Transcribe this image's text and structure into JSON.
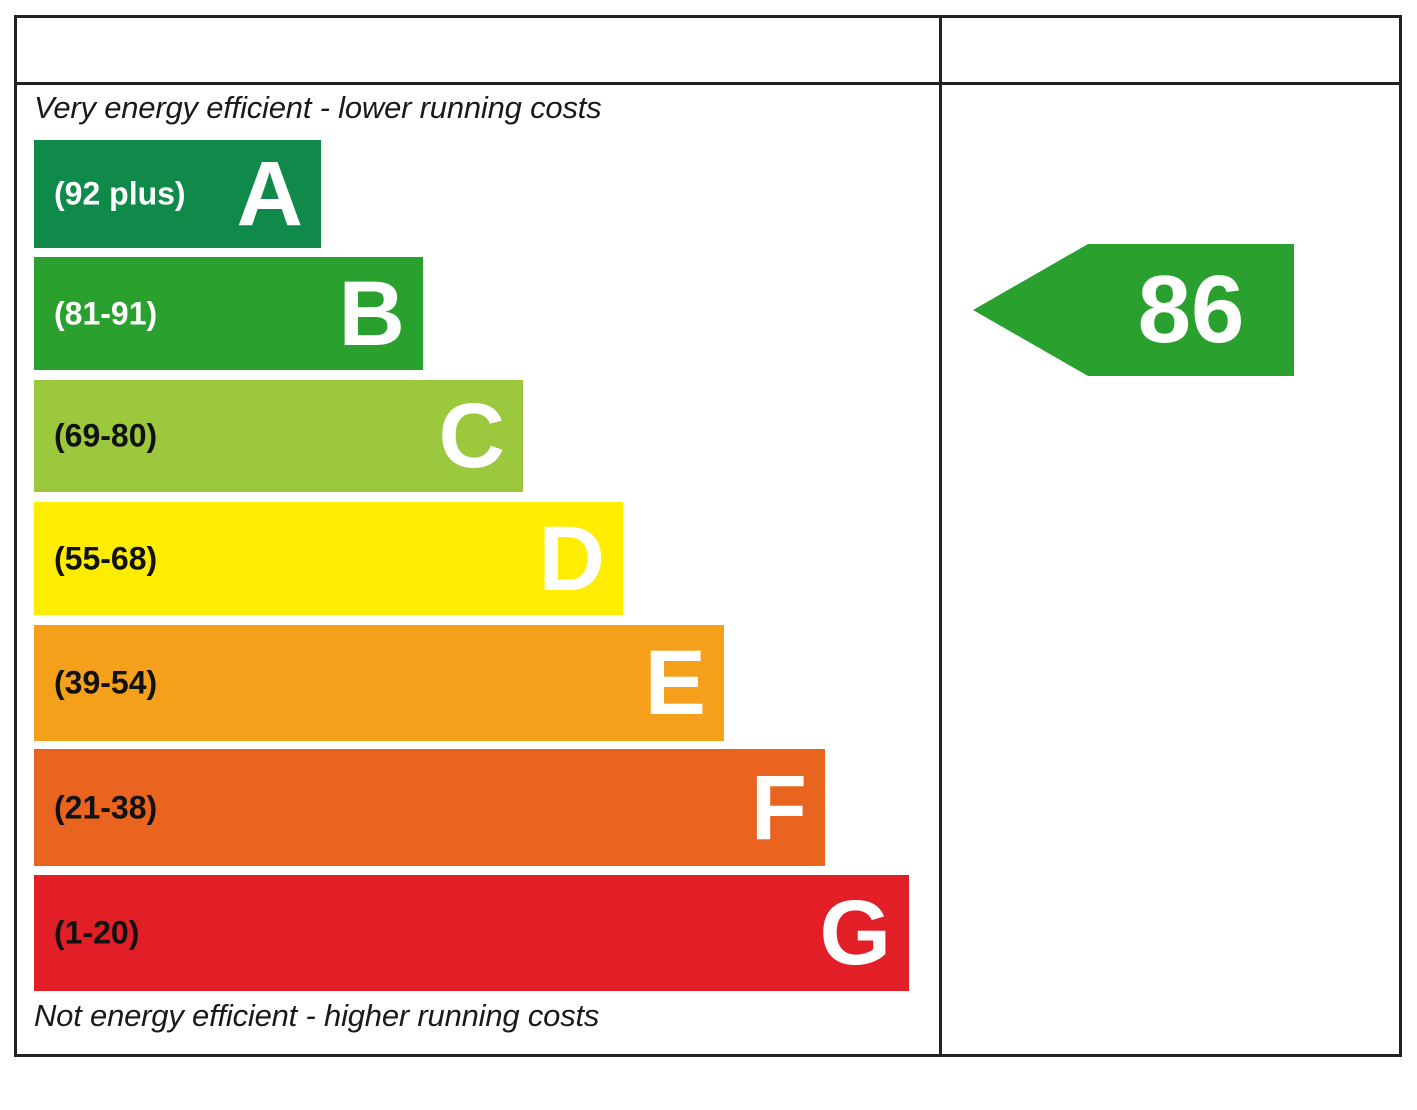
{
  "chart_data": {
    "type": "bar",
    "top_caption": "Very energy efficient - lower running costs",
    "bottom_caption": "Not energy efficient - higher running costs",
    "bands": [
      {
        "letter": "A",
        "range": "(92 plus)",
        "min": 92,
        "max": 100,
        "color": "#0f8a4a",
        "text_color": "#ffffff"
      },
      {
        "letter": "B",
        "range": "(81-91)",
        "min": 81,
        "max": 91,
        "color": "#2aa02e",
        "text_color": "#ffffff"
      },
      {
        "letter": "C",
        "range": "(69-80)",
        "min": 69,
        "max": 80,
        "color": "#9bc83c",
        "text_color": "#111111"
      },
      {
        "letter": "D",
        "range": "(55-68)",
        "min": 55,
        "max": 68,
        "color": "#ffed00",
        "text_color": "#111111"
      },
      {
        "letter": "E",
        "range": "(39-54)",
        "min": 39,
        "max": 54,
        "color": "#f5a01a",
        "text_color": "#111111"
      },
      {
        "letter": "F",
        "range": "(21-38)",
        "min": 21,
        "max": 38,
        "color": "#e9641f",
        "text_color": "#111111"
      },
      {
        "letter": "G",
        "range": "(1-20)",
        "min": 1,
        "max": 20,
        "color": "#e21e26",
        "text_color": "#111111"
      }
    ],
    "current_rating": {
      "value": 86,
      "label": "86",
      "band": "B",
      "color": "#2aa02e"
    }
  }
}
